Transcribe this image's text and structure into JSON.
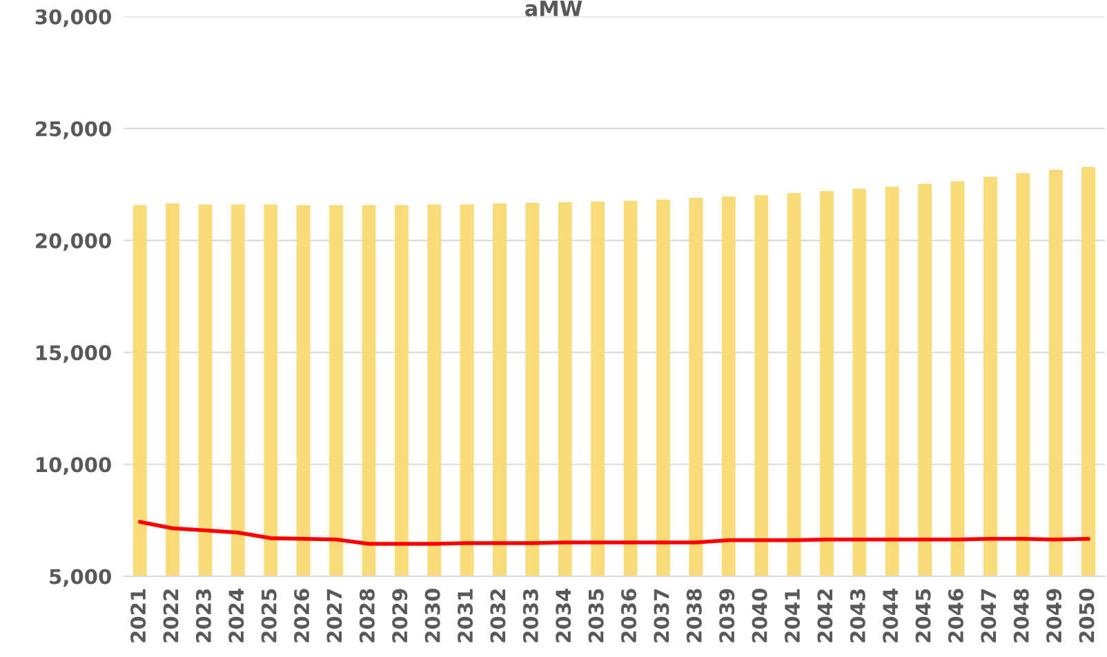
{
  "chart_data": {
    "type": "bar",
    "title": "aMW",
    "categories": [
      "2021",
      "2022",
      "2023",
      "2024",
      "2025",
      "2026",
      "2027",
      "2028",
      "2029",
      "2030",
      "2031",
      "2032",
      "2033",
      "2034",
      "2035",
      "2036",
      "2037",
      "2038",
      "2039",
      "2040",
      "2041",
      "2042",
      "2043",
      "2044",
      "2045",
      "2046",
      "2047",
      "2048",
      "2049",
      "2050"
    ],
    "series": [
      {
        "color": "#f9dc78",
        "values": [
          21580,
          21650,
          21610,
          21610,
          21610,
          21580,
          21580,
          21580,
          21580,
          21610,
          21610,
          21650,
          21680,
          21710,
          21740,
          21770,
          21830,
          21900,
          21960,
          22020,
          22120,
          22210,
          22310,
          22400,
          22530,
          22650,
          22840,
          23000,
          23160,
          23280
        ]
      },
      {
        "type": "line",
        "color": "#ff0000",
        "values": [
          7430,
          7140,
          7050,
          6950,
          6700,
          6670,
          6640,
          6450,
          6450,
          6450,
          6480,
          6480,
          6480,
          6510,
          6510,
          6510,
          6510,
          6510,
          6610,
          6610,
          6610,
          6640,
          6640,
          6640,
          6640,
          6640,
          6670,
          6670,
          6640,
          6670
        ]
      }
    ],
    "ylim": [
      5000,
      30000
    ],
    "yticks": [
      {
        "value": 5000,
        "label": "5,000"
      },
      {
        "value": 10000,
        "label": "10,000"
      },
      {
        "value": 15000,
        "label": "15,000"
      },
      {
        "value": 20000,
        "label": "20,000"
      },
      {
        "value": 25000,
        "label": "25,000"
      },
      {
        "value": 30000,
        "label": "30,000"
      }
    ],
    "grid": "y",
    "legend": false,
    "marker": "none",
    "line_style": "solid"
  }
}
